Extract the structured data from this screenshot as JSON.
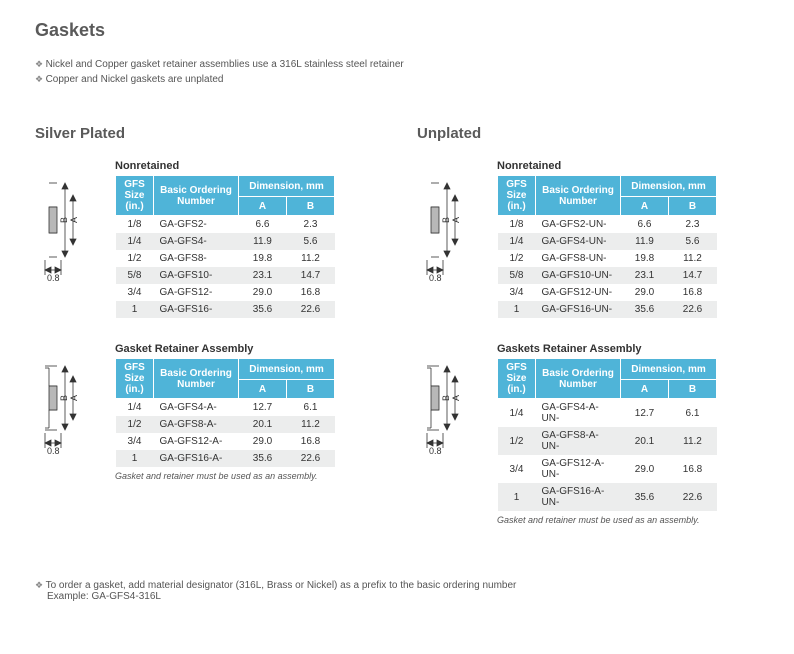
{
  "page_title": "Gaskets",
  "intro_bullets": [
    "Nickel and Copper gasket retainer assemblies use a 316L stainless steel retainer",
    "Copper and Nickel gaskets are unplated"
  ],
  "sections": [
    {
      "title": "Silver Plated",
      "tables": [
        {
          "title": "Nonretained",
          "diagram": "nonretained",
          "header": {
            "gfs": "GFS Size (in.)",
            "ord": "Basic Ordering Number",
            "dim": "Dimension, mm",
            "a": "A",
            "b": "B"
          },
          "rows": [
            {
              "size": "1/8",
              "ord": "GA-GFS2-",
              "a": "6.6",
              "b": "2.3"
            },
            {
              "size": "1/4",
              "ord": "GA-GFS4-",
              "a": "11.9",
              "b": "5.6"
            },
            {
              "size": "1/2",
              "ord": "GA-GFS8-",
              "a": "19.8",
              "b": "11.2"
            },
            {
              "size": "5/8",
              "ord": "GA-GFS10-",
              "a": "23.1",
              "b": "14.7"
            },
            {
              "size": "3/4",
              "ord": "GA-GFS12-",
              "a": "29.0",
              "b": "16.8"
            },
            {
              "size": "1",
              "ord": "GA-GFS16-",
              "a": "35.6",
              "b": "22.6"
            }
          ]
        },
        {
          "title": "Gasket Retainer Assembly",
          "diagram": "retainer",
          "header": {
            "gfs": "GFS Size (in.)",
            "ord": "Basic Ordering Number",
            "dim": "Dimension, mm",
            "a": "A",
            "b": "B"
          },
          "rows": [
            {
              "size": "1/4",
              "ord": "GA-GFS4-A-",
              "a": "12.7",
              "b": "6.1"
            },
            {
              "size": "1/2",
              "ord": "GA-GFS8-A-",
              "a": "20.1",
              "b": "11.2"
            },
            {
              "size": "3/4",
              "ord": "GA-GFS12-A-",
              "a": "29.0",
              "b": "16.8"
            },
            {
              "size": "1",
              "ord": "GA-GFS16-A-",
              "a": "35.6",
              "b": "22.6"
            }
          ],
          "footnote": "Gasket and retainer must be used as an assembly."
        }
      ]
    },
    {
      "title": "Unplated",
      "tables": [
        {
          "title": "Nonretained",
          "diagram": "nonretained",
          "header": {
            "gfs": "GFS Size (in.)",
            "ord": "Basic Ordering Number",
            "dim": "Dimension, mm",
            "a": "A",
            "b": "B"
          },
          "rows": [
            {
              "size": "1/8",
              "ord": "GA-GFS2-UN-",
              "a": "6.6",
              "b": "2.3"
            },
            {
              "size": "1/4",
              "ord": "GA-GFS4-UN-",
              "a": "11.9",
              "b": "5.6"
            },
            {
              "size": "1/2",
              "ord": "GA-GFS8-UN-",
              "a": "19.8",
              "b": "11.2"
            },
            {
              "size": "5/8",
              "ord": "GA-GFS10-UN-",
              "a": "23.1",
              "b": "14.7"
            },
            {
              "size": "3/4",
              "ord": "GA-GFS12-UN-",
              "a": "29.0",
              "b": "16.8"
            },
            {
              "size": "1",
              "ord": "GA-GFS16-UN-",
              "a": "35.6",
              "b": "22.6"
            }
          ]
        },
        {
          "title": "Gaskets Retainer Assembly",
          "diagram": "retainer",
          "header": {
            "gfs": "GFS Size (in.)",
            "ord": "Basic Ordering Number",
            "dim": "Dimension, mm",
            "a": "A",
            "b": "B"
          },
          "rows": [
            {
              "size": "1/4",
              "ord": "GA-GFS4-A-UN-",
              "a": "12.7",
              "b": "6.1"
            },
            {
              "size": "1/2",
              "ord": "GA-GFS8-A-UN-",
              "a": "20.1",
              "b": "11.2"
            },
            {
              "size": "3/4",
              "ord": "GA-GFS12-A-UN-",
              "a": "29.0",
              "b": "16.8"
            },
            {
              "size": "1",
              "ord": "GA-GFS16-A-UN-",
              "a": "35.6",
              "b": "22.6"
            }
          ],
          "footnote": "Gasket and retainer must be used as an assembly."
        }
      ]
    }
  ],
  "bottom": {
    "line": "To order a gasket, add material designator (316L, Brass or Nickel) as a prefix to the basic ordering number",
    "example": "Example: GA-GFS4-316L"
  },
  "colors": {
    "header_bg": "#4fb4d8",
    "row_alt_bg": "#eceded",
    "heading_color": "#5a5a5a"
  }
}
